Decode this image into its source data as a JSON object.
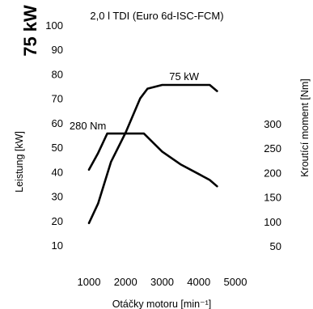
{
  "header": {
    "power_badge": "75 kW"
  },
  "chart_data": {
    "type": "line",
    "title": "2,0 l TDI (Euro 6d-ISC-FCM)",
    "xlabel": "Otáčky motoru [min⁻¹]",
    "ylabel_left": "Leistung [kW]",
    "ylabel_right": "Kroutící moment [Nm]",
    "x_ticks": [
      1000,
      2000,
      3000,
      4000,
      5000
    ],
    "y_left_ticks": [
      10,
      20,
      30,
      40,
      50,
      60,
      70,
      80,
      90,
      100
    ],
    "y_right_ticks": [
      50,
      100,
      150,
      200,
      250,
      300
    ],
    "xlim": [
      1000,
      5000
    ],
    "ylim_left": [
      10,
      100
    ],
    "ylim_right": [
      50,
      300
    ],
    "grid": false,
    "series": [
      {
        "name": "75 kW",
        "axis": "left",
        "x": [
          1000,
          1250,
          1600,
          2000,
          2400,
          2600,
          3000,
          3500,
          4000,
          4300,
          4500
        ],
        "y": [
          19,
          27,
          44,
          56,
          70,
          74,
          75.5,
          75.5,
          75.5,
          75.5,
          73
        ]
      },
      {
        "name": "280 Nm",
        "axis": "right",
        "x": [
          1000,
          1250,
          1500,
          2000,
          2500,
          2800,
          3000,
          3500,
          4000,
          4300,
          4500
        ],
        "y": [
          206,
          240,
          280,
          280,
          280,
          258,
          243,
          217,
          197,
          185,
          172
        ]
      }
    ]
  }
}
